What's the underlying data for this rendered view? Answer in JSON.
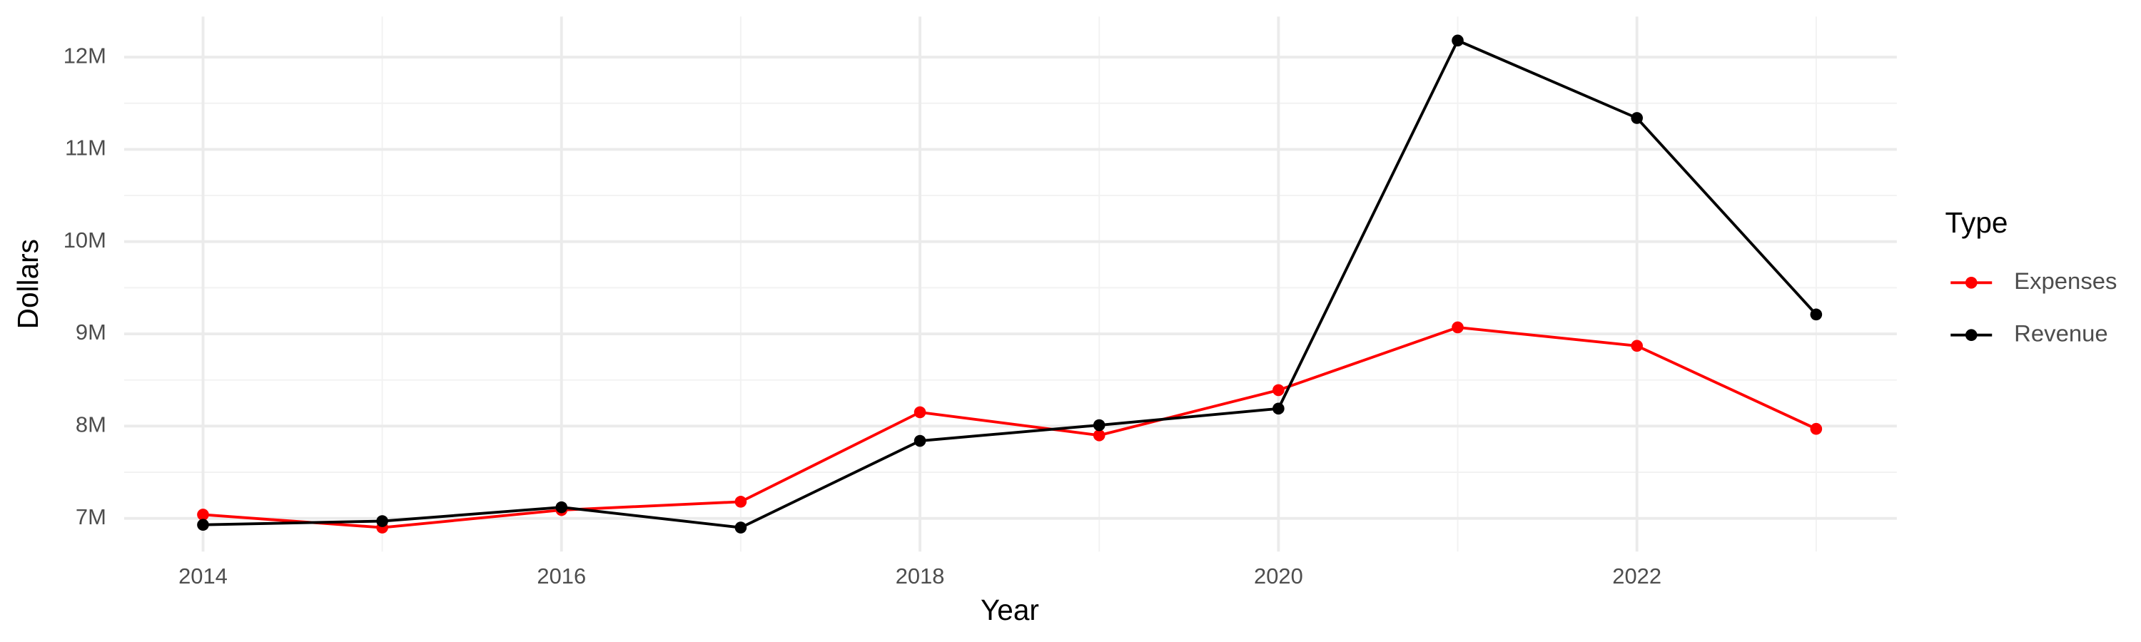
{
  "chart_data": {
    "type": "line",
    "x_label": "Year",
    "y_label": "Dollars",
    "legend_title": "Type",
    "legend_position": "right",
    "grid": true,
    "x": [
      2014,
      2015,
      2016,
      2017,
      2018,
      2019,
      2020,
      2021,
      2022,
      2023
    ],
    "series": [
      {
        "name": "Expenses",
        "color": "#ff0000",
        "values": [
          7040000,
          6900000,
          7090000,
          7180000,
          8150000,
          7900000,
          8390000,
          9070000,
          8870000,
          7970000
        ]
      },
      {
        "name": "Revenue",
        "color": "#000000",
        "values": [
          6930000,
          6970000,
          7120000,
          6900000,
          7840000,
          8010000,
          8190000,
          12180000,
          11340000,
          9210000
        ]
      }
    ],
    "xlim": [
      2013.56,
      2023.45
    ],
    "xticks": [
      2014,
      2016,
      2018,
      2020,
      2022
    ],
    "ylim": [
      6640000,
      12440000
    ],
    "yticks": [
      {
        "value": 7000000,
        "label": "7M"
      },
      {
        "value": 8000000,
        "label": "8M"
      },
      {
        "value": 9000000,
        "label": "9M"
      },
      {
        "value": 10000000,
        "label": "10M"
      },
      {
        "value": 11000000,
        "label": "11M"
      },
      {
        "value": 12000000,
        "label": "12M"
      }
    ]
  }
}
